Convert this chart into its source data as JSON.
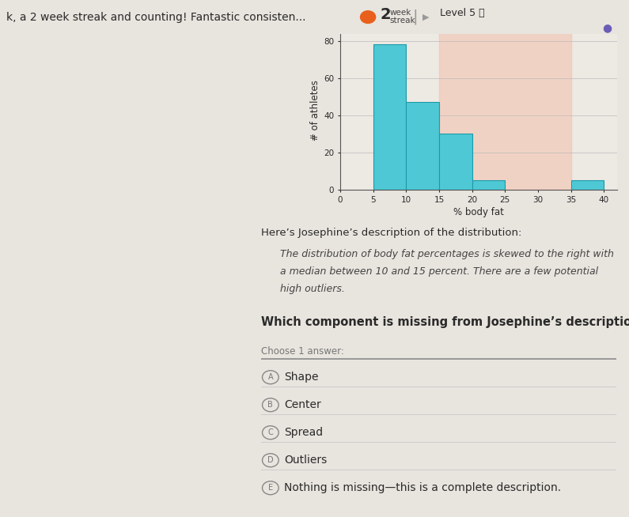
{
  "bg_color": "#cdc9c3",
  "content_bg": "#e8e4de",
  "header_bg": "#e8e4de",
  "header_text": "k, a 2 week streak and counting! Fantastic consisten...",
  "streak_num": "2",
  "level_text": "Level 5",
  "hist_bins": [
    0,
    5,
    10,
    15,
    20,
    25,
    30,
    35,
    40
  ],
  "hist_values": [
    0,
    78,
    47,
    30,
    5,
    0,
    0,
    5
  ],
  "hist_color": "#4ec8d4",
  "hist_edgecolor": "#1a9aaa",
  "xlabel": "% body fat",
  "ylabel": "# of athletes",
  "yticks": [
    0,
    20,
    40,
    60,
    80
  ],
  "xticks": [
    0,
    5,
    10,
    15,
    20,
    25,
    30,
    35,
    40
  ],
  "ylim": [
    0,
    85
  ],
  "xlim": [
    0,
    42
  ],
  "pink_x_start": 15,
  "pink_x_end": 35,
  "pink_color": "#f5b8a0",
  "pink_alpha": 0.45,
  "description_header": "Here’s Josephine’s description of the distribution:",
  "desc_line1": "The distribution of body fat percentages is skewed to the right with",
  "desc_line2": "a median between 10 and 15 percent. There are a few potential",
  "desc_line3": "high outliers.",
  "question_text": "Which component is missing from Josephine’s description?",
  "choose_text": "Choose 1 answer:",
  "options": [
    {
      "letter": "A",
      "text": "Shape"
    },
    {
      "letter": "B",
      "text": "Center"
    },
    {
      "letter": "C",
      "text": "Spread"
    },
    {
      "letter": "D",
      "text": "Outliers"
    },
    {
      "letter": "E",
      "text": "Nothing is missing—this is a complete description."
    }
  ],
  "flame_color": "#e8601c",
  "progress_color": "#6b5db5",
  "arrow_color": "#999999",
  "text_dark": "#2a2a2a",
  "text_mid": "#444444",
  "text_light": "#777777",
  "divider_color": "#999999"
}
